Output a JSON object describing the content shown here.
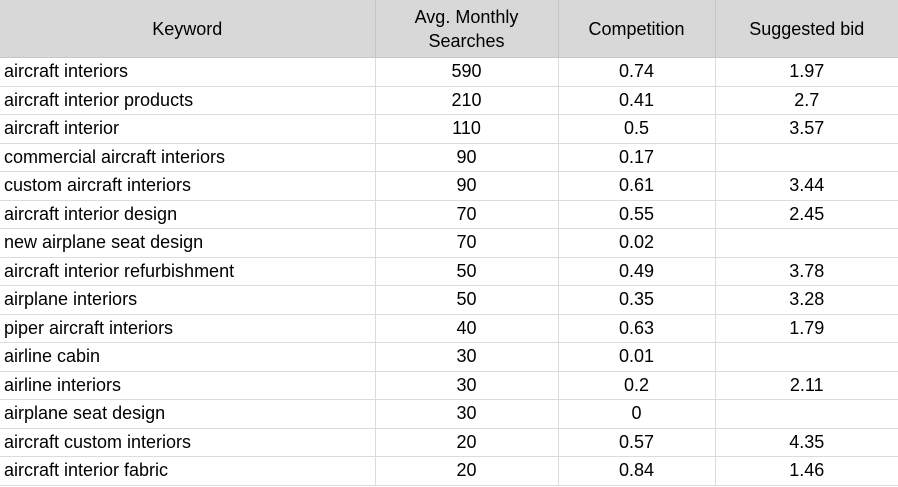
{
  "table": {
    "headers": {
      "keyword": "Keyword",
      "avg_monthly_line1": "Avg. Monthly",
      "avg_monthly_line2": "Searches",
      "competition": "Competition",
      "suggested_bid": "Suggested bid"
    },
    "rows": [
      {
        "keyword": "aircraft interiors",
        "searches": "590",
        "competition": "0.74",
        "bid": "1.97"
      },
      {
        "keyword": "aircraft interior products",
        "searches": "210",
        "competition": "0.41",
        "bid": "2.7"
      },
      {
        "keyword": "aircraft interior",
        "searches": "110",
        "competition": "0.5",
        "bid": "3.57"
      },
      {
        "keyword": "commercial aircraft interiors",
        "searches": "90",
        "competition": "0.17",
        "bid": ""
      },
      {
        "keyword": "custom aircraft interiors",
        "searches": "90",
        "competition": "0.61",
        "bid": "3.44"
      },
      {
        "keyword": "aircraft interior design",
        "searches": "70",
        "competition": "0.55",
        "bid": "2.45"
      },
      {
        "keyword": "new airplane seat design",
        "searches": "70",
        "competition": "0.02",
        "bid": ""
      },
      {
        "keyword": "aircraft interior refurbishment",
        "searches": "50",
        "competition": "0.49",
        "bid": "3.78"
      },
      {
        "keyword": "airplane interiors",
        "searches": "50",
        "competition": "0.35",
        "bid": "3.28"
      },
      {
        "keyword": "piper aircraft interiors",
        "searches": "40",
        "competition": "0.63",
        "bid": "1.79"
      },
      {
        "keyword": "airline cabin",
        "searches": "30",
        "competition": "0.01",
        "bid": ""
      },
      {
        "keyword": "airline interiors",
        "searches": "30",
        "competition": "0.2",
        "bid": "2.11"
      },
      {
        "keyword": "airplane seat design",
        "searches": "30",
        "competition": "0",
        "bid": ""
      },
      {
        "keyword": "aircraft custom interiors",
        "searches": "20",
        "competition": "0.57",
        "bid": "4.35"
      },
      {
        "keyword": "aircraft interior fabric",
        "searches": "20",
        "competition": "0.84",
        "bid": "1.46"
      }
    ]
  }
}
